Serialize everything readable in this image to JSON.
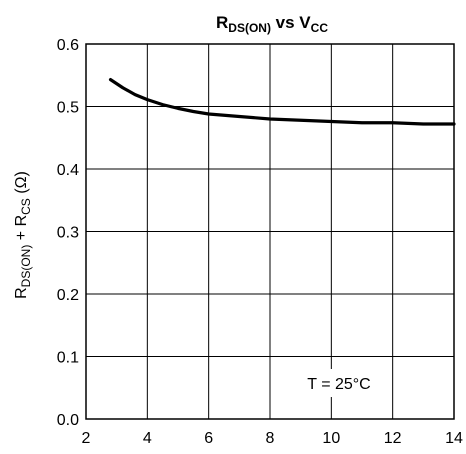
{
  "chart_data": {
    "type": "line",
    "title": {
      "base1": "R",
      "sub1": "DS(ON)",
      "mid": " vs V",
      "sub2": "CC"
    },
    "ylabel": {
      "base1": "R",
      "sub1": "DS(ON)",
      "mid": " + R",
      "sub2": "CS",
      "unit": " (Ω)"
    },
    "xlabel": "",
    "xlim": [
      2,
      14
    ],
    "ylim": [
      0.0,
      0.6
    ],
    "x_ticks": [
      "2",
      "4",
      "6",
      "8",
      "10",
      "12",
      "14"
    ],
    "y_ticks": [
      "0.0",
      "0.1",
      "0.2",
      "0.3",
      "0.4",
      "0.5",
      "0.6"
    ],
    "grid": true,
    "annotation": "T = 25°C",
    "series": [
      {
        "x": [
          2.8,
          3.2,
          3.6,
          4.0,
          4.5,
          5.0,
          5.5,
          6.0,
          7.0,
          8.0,
          9.0,
          10.0,
          11.0,
          12.0,
          13.0,
          14.0
        ],
        "y": [
          0.543,
          0.53,
          0.519,
          0.511,
          0.503,
          0.497,
          0.492,
          0.488,
          0.484,
          0.48,
          0.478,
          0.476,
          0.474,
          0.474,
          0.472,
          0.472
        ]
      }
    ]
  }
}
